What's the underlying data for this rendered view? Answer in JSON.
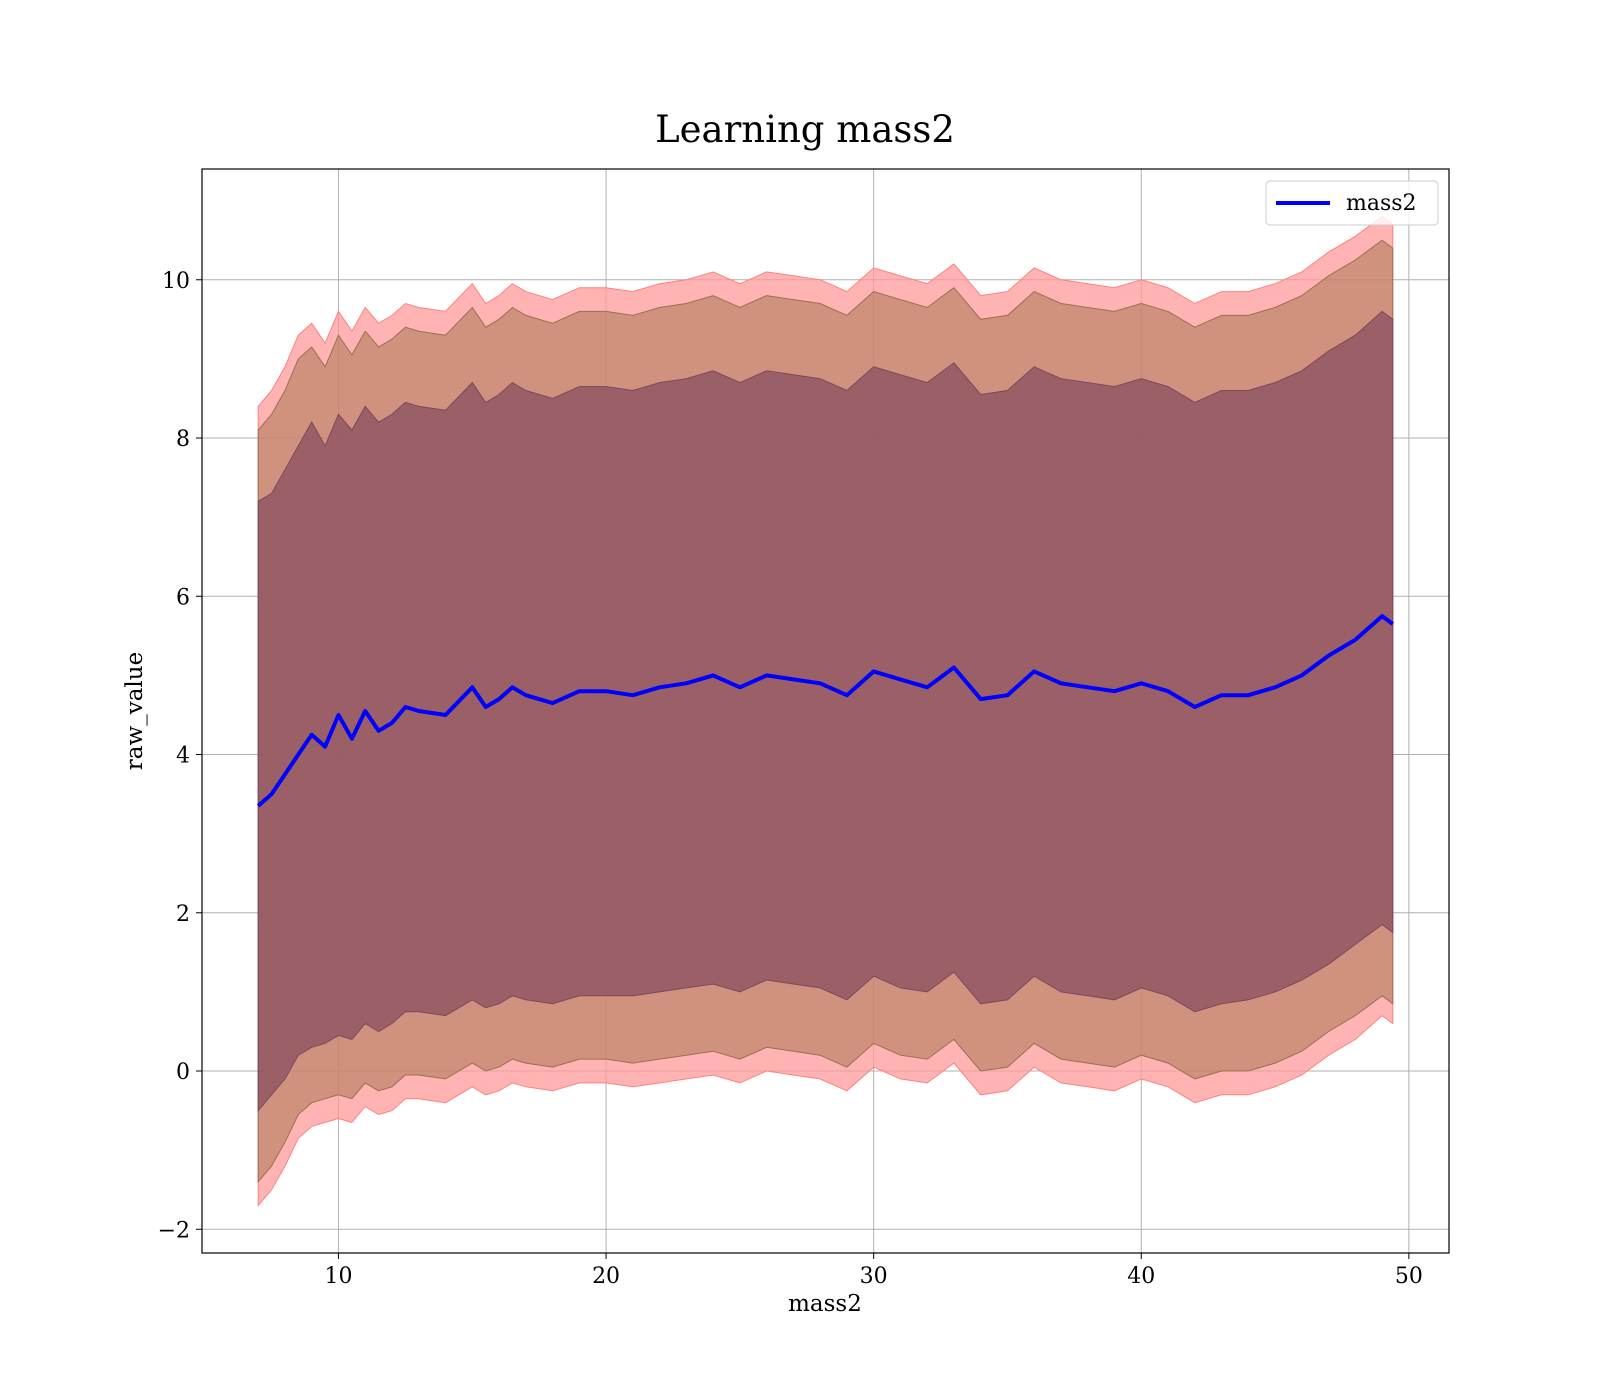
{
  "chart_data": {
    "type": "area",
    "title": "Learning mass2",
    "xlabel": "mass2",
    "ylabel": "raw_value",
    "xlim": [
      4.9,
      51.5
    ],
    "ylim": [
      -2.3,
      11.4
    ],
    "xticks": [
      10,
      20,
      30,
      40,
      50
    ],
    "yticks": [
      -2,
      0,
      2,
      4,
      6,
      8,
      10
    ],
    "xtick_labels": [
      "10",
      "20",
      "30",
      "40",
      "50"
    ],
    "ytick_labels": [
      "−2",
      "0",
      "2",
      "4",
      "6",
      "8",
      "10"
    ],
    "grid": true,
    "legend": {
      "placement": "top-right",
      "entries": [
        "mass2"
      ]
    },
    "colors": {
      "line": "#0000ff",
      "band_3sigma": "#ff9999",
      "band_2sigma": "#b07a5a",
      "band_1sigma": "#8a5060"
    },
    "series": [
      {
        "name": "mass2",
        "x": [
          7.0,
          7.5,
          8.0,
          8.5,
          9.0,
          9.5,
          10.0,
          10.5,
          11.0,
          11.5,
          12.0,
          12.5,
          13.0,
          14.0,
          15.0,
          15.5,
          16.0,
          16.5,
          17.0,
          18.0,
          19.0,
          20.0,
          21.0,
          22.0,
          23.0,
          24.0,
          25.0,
          26.0,
          27.0,
          28.0,
          29.0,
          30.0,
          31.0,
          32.0,
          33.0,
          34.0,
          35.0,
          36.0,
          37.0,
          38.0,
          39.0,
          40.0,
          41.0,
          42.0,
          43.0,
          44.0,
          45.0,
          46.0,
          47.0,
          48.0,
          49.0,
          49.4
        ],
        "y": [
          3.35,
          3.5,
          3.75,
          4.0,
          4.25,
          4.1,
          4.5,
          4.2,
          4.55,
          4.3,
          4.4,
          4.6,
          4.55,
          4.5,
          4.85,
          4.6,
          4.7,
          4.85,
          4.75,
          4.65,
          4.8,
          4.8,
          4.75,
          4.85,
          4.9,
          5.0,
          4.85,
          5.0,
          4.95,
          4.9,
          4.75,
          5.05,
          4.95,
          4.85,
          5.1,
          4.7,
          4.75,
          5.05,
          4.9,
          4.85,
          4.8,
          4.9,
          4.8,
          4.6,
          4.75,
          4.75,
          4.85,
          5.0,
          5.25,
          5.45,
          5.75,
          5.65
        ],
        "lower_1sigma": [
          -0.5,
          -0.3,
          -0.1,
          0.2,
          0.3,
          0.35,
          0.45,
          0.4,
          0.6,
          0.5,
          0.6,
          0.75,
          0.75,
          0.7,
          0.9,
          0.8,
          0.85,
          0.95,
          0.9,
          0.85,
          0.95,
          0.95,
          0.95,
          1.0,
          1.05,
          1.1,
          1.0,
          1.15,
          1.1,
          1.05,
          0.9,
          1.2,
          1.05,
          1.0,
          1.25,
          0.85,
          0.9,
          1.2,
          1.0,
          0.95,
          0.9,
          1.05,
          0.95,
          0.75,
          0.85,
          0.9,
          1.0,
          1.15,
          1.35,
          1.6,
          1.85,
          1.75
        ],
        "upper_1sigma": [
          7.2,
          7.3,
          7.6,
          7.9,
          8.2,
          7.9,
          8.3,
          8.1,
          8.4,
          8.2,
          8.3,
          8.45,
          8.4,
          8.35,
          8.7,
          8.45,
          8.55,
          8.7,
          8.6,
          8.5,
          8.65,
          8.65,
          8.6,
          8.7,
          8.75,
          8.85,
          8.7,
          8.85,
          8.8,
          8.75,
          8.6,
          8.9,
          8.8,
          8.7,
          8.95,
          8.55,
          8.6,
          8.9,
          8.75,
          8.7,
          8.65,
          8.75,
          8.65,
          8.45,
          8.6,
          8.6,
          8.7,
          8.85,
          9.1,
          9.3,
          9.6,
          9.5
        ],
        "lower_2sigma": [
          -1.4,
          -1.2,
          -0.9,
          -0.55,
          -0.4,
          -0.35,
          -0.3,
          -0.35,
          -0.15,
          -0.25,
          -0.2,
          -0.05,
          -0.05,
          -0.1,
          0.1,
          0.0,
          0.05,
          0.15,
          0.1,
          0.05,
          0.15,
          0.15,
          0.1,
          0.15,
          0.2,
          0.25,
          0.15,
          0.3,
          0.25,
          0.2,
          0.05,
          0.35,
          0.2,
          0.15,
          0.4,
          0.0,
          0.05,
          0.35,
          0.15,
          0.1,
          0.05,
          0.2,
          0.1,
          -0.1,
          0.0,
          0.0,
          0.1,
          0.25,
          0.5,
          0.7,
          0.95,
          0.85
        ],
        "upper_2sigma": [
          8.1,
          8.3,
          8.6,
          9.0,
          9.15,
          8.9,
          9.3,
          9.05,
          9.35,
          9.15,
          9.25,
          9.4,
          9.35,
          9.3,
          9.65,
          9.4,
          9.5,
          9.65,
          9.55,
          9.45,
          9.6,
          9.6,
          9.55,
          9.65,
          9.7,
          9.8,
          9.65,
          9.8,
          9.75,
          9.7,
          9.55,
          9.85,
          9.75,
          9.65,
          9.9,
          9.5,
          9.55,
          9.85,
          9.7,
          9.65,
          9.6,
          9.7,
          9.6,
          9.4,
          9.55,
          9.55,
          9.65,
          9.8,
          10.05,
          10.25,
          10.5,
          10.4
        ],
        "lower_3sigma": [
          -1.7,
          -1.5,
          -1.2,
          -0.85,
          -0.7,
          -0.65,
          -0.6,
          -0.65,
          -0.45,
          -0.55,
          -0.5,
          -0.35,
          -0.35,
          -0.4,
          -0.2,
          -0.3,
          -0.25,
          -0.15,
          -0.2,
          -0.25,
          -0.15,
          -0.15,
          -0.2,
          -0.15,
          -0.1,
          -0.05,
          -0.15,
          0.0,
          -0.05,
          -0.1,
          -0.25,
          0.05,
          -0.1,
          -0.15,
          0.1,
          -0.3,
          -0.25,
          0.05,
          -0.15,
          -0.2,
          -0.25,
          -0.1,
          -0.2,
          -0.4,
          -0.3,
          -0.3,
          -0.2,
          -0.05,
          0.2,
          0.4,
          0.7,
          0.6
        ],
        "upper_3sigma": [
          8.4,
          8.6,
          8.9,
          9.3,
          9.45,
          9.2,
          9.6,
          9.35,
          9.65,
          9.45,
          9.55,
          9.7,
          9.65,
          9.6,
          9.95,
          9.7,
          9.8,
          9.95,
          9.85,
          9.75,
          9.9,
          9.9,
          9.85,
          9.95,
          10.0,
          10.1,
          9.95,
          10.1,
          10.05,
          10.0,
          9.85,
          10.15,
          10.05,
          9.95,
          10.2,
          9.8,
          9.85,
          10.15,
          10.0,
          9.95,
          9.9,
          10.0,
          9.9,
          9.7,
          9.85,
          9.85,
          9.95,
          10.1,
          10.35,
          10.55,
          10.8,
          10.7
        ]
      }
    ]
  }
}
